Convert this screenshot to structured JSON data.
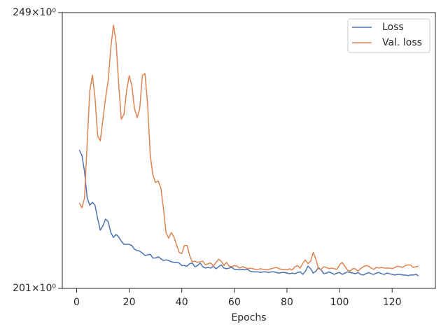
{
  "chart_data": {
    "type": "line",
    "xlabel": "Epochs",
    "x": [
      1,
      2,
      3,
      4,
      5,
      6,
      7,
      8,
      9,
      10,
      11,
      12,
      13,
      14,
      15,
      16,
      17,
      18,
      19,
      20,
      21,
      22,
      23,
      24,
      25,
      26,
      27,
      28,
      29,
      30,
      31,
      32,
      33,
      34,
      35,
      36,
      37,
      38,
      39,
      40,
      41,
      42,
      43,
      44,
      45,
      46,
      47,
      48,
      49,
      50,
      51,
      52,
      53,
      54,
      55,
      56,
      57,
      58,
      59,
      60,
      61,
      62,
      63,
      64,
      65,
      66,
      67,
      68,
      69,
      70,
      71,
      72,
      73,
      74,
      75,
      76,
      77,
      78,
      79,
      80,
      81,
      82,
      83,
      84,
      85,
      86,
      87,
      88,
      89,
      90,
      91,
      92,
      93,
      94,
      95,
      96,
      97,
      98,
      99,
      100,
      101,
      102,
      103,
      104,
      105,
      106,
      107,
      108,
      109,
      110,
      111,
      112,
      113,
      114,
      115,
      116,
      117,
      118,
      119,
      120,
      121,
      122,
      123,
      124,
      125,
      126,
      127,
      128,
      129,
      130
    ],
    "series": [
      {
        "name": "Loss",
        "color": "#4c72b0",
        "values": [
          223.8,
          222.9,
          220.1,
          215.7,
          214.4,
          214.9,
          214.4,
          212.2,
          210.3,
          211.0,
          212.1,
          211.7,
          209.9,
          209.1,
          209.6,
          209.2,
          208.5,
          208.0,
          208.0,
          208.0,
          207.8,
          207.2,
          207.0,
          206.9,
          206.6,
          206.2,
          206.3,
          206.4,
          205.8,
          205.8,
          206.0,
          205.7,
          205.4,
          205.5,
          205.4,
          205.2,
          205.1,
          205.1,
          205.0,
          204.6,
          204.6,
          204.5,
          204.9,
          205.0,
          204.4,
          204.6,
          205.0,
          204.4,
          204.2,
          204.3,
          204.2,
          204.5,
          204.1,
          204.4,
          204.7,
          204.2,
          204.1,
          204.2,
          204.3,
          204.0,
          204.0,
          203.9,
          204.0,
          203.9,
          204.0,
          203.7,
          203.6,
          203.6,
          203.6,
          203.5,
          203.6,
          203.6,
          203.5,
          203.6,
          203.6,
          203.5,
          203.4,
          203.5,
          203.5,
          203.4,
          203.3,
          203.4,
          203.3,
          203.5,
          203.6,
          203.2,
          203.7,
          204.5,
          204.1,
          203.4,
          203.7,
          204.3,
          203.9,
          203.3,
          203.4,
          203.6,
          203.4,
          203.2,
          203.4,
          203.5,
          203.2,
          203.4,
          203.6,
          203.5,
          203.4,
          203.3,
          203.5,
          203.2,
          203.1,
          203.3,
          203.5,
          203.3,
          203.2,
          203.4,
          203.5,
          203.3,
          203.2,
          203.4,
          203.3,
          203.2,
          203.1,
          203.2,
          203.2,
          203.1,
          203.1,
          203.0,
          203.1,
          203.1,
          203.2,
          203.0
        ]
      },
      {
        "name": "Val. loss",
        "color": "#dd8452",
        "values": [
          214.8,
          214.0,
          215.6,
          224.9,
          234.3,
          237.2,
          233.0,
          226.3,
          225.4,
          229.2,
          233.0,
          236.2,
          242.3,
          246.6,
          243.4,
          235.5,
          229.2,
          230.1,
          234.3,
          237.1,
          235.3,
          231.1,
          229.5,
          231.1,
          237.1,
          237.5,
          231.8,
          222.9,
          219.5,
          218.2,
          218.5,
          217.4,
          214.0,
          209.9,
          209.0,
          209.9,
          209.2,
          207.9,
          206.7,
          206.5,
          207.8,
          207.8,
          206.2,
          205.2,
          205.3,
          205.1,
          205.2,
          205.3,
          204.7,
          204.9,
          205.0,
          204.5,
          205.1,
          205.6,
          205.3,
          204.6,
          205.1,
          204.5,
          204.4,
          204.6,
          204.5,
          204.2,
          204.4,
          204.3,
          204.1,
          204.2,
          204.1,
          204.0,
          204.0,
          204.1,
          204.0,
          204.0,
          204.0,
          204.1,
          204.2,
          204.3,
          204.1,
          204.0,
          204.0,
          203.9,
          204.1,
          203.9,
          204.4,
          204.6,
          204.2,
          204.9,
          205.5,
          204.9,
          205.3,
          206.7,
          205.6,
          204.1,
          204.0,
          204.4,
          204.3,
          204.1,
          204.2,
          204.1,
          204.0,
          204.7,
          205.1,
          204.5,
          203.9,
          203.7,
          204.1,
          204.1,
          203.7,
          204.1,
          204.4,
          204.6,
          204.5,
          204.2,
          204.0,
          204.3,
          204.2,
          204.3,
          204.2,
          204.2,
          204.2,
          204.1,
          204.3,
          204.5,
          204.4,
          204.3,
          204.6,
          204.7,
          204.7,
          204.3,
          204.4,
          204.5
        ]
      }
    ],
    "xlim": [
      -5.45,
      136.45
    ],
    "xticks": [
      0,
      20,
      40,
      60,
      80,
      100,
      120
    ],
    "ylim": [
      201,
      249
    ],
    "yscale": "log",
    "yticks": [
      {
        "value": 201,
        "label": "201×10⁰"
      },
      {
        "value": 249,
        "label": "249×10⁰"
      }
    ],
    "legend": "upper right"
  }
}
